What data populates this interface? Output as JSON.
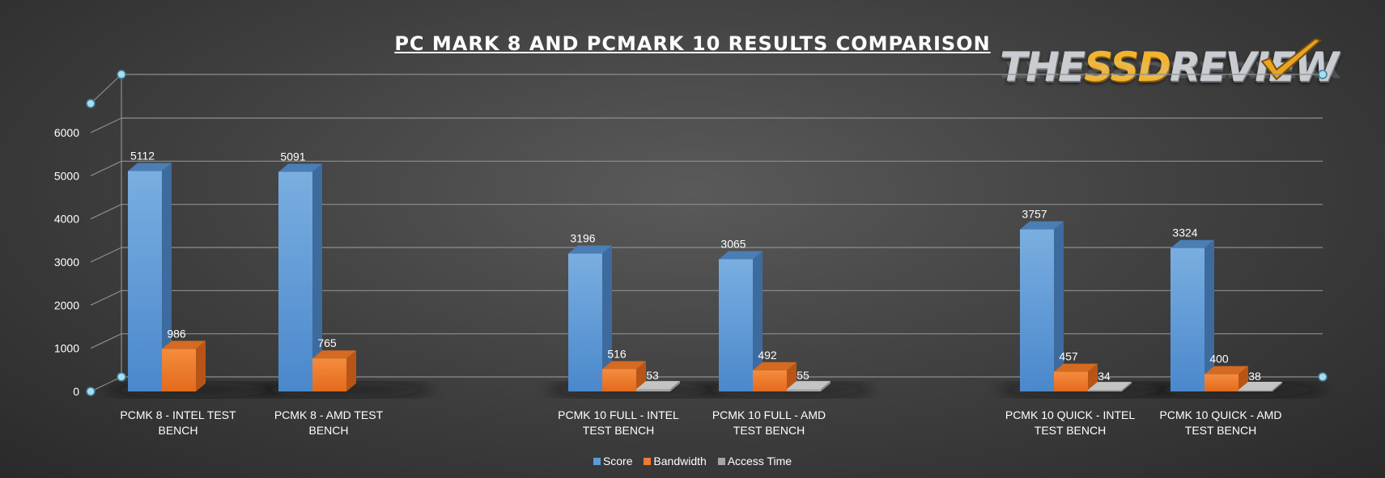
{
  "header": {
    "title": "PC MARK 8 AND PCMARK 10 RESULTS COMPARISON",
    "logo_word_1": "THE",
    "logo_word_2": "SSD",
    "logo_word_3": "REVIEW"
  },
  "legend": {
    "items": [
      {
        "label": "Score",
        "color": "#5b9bd5"
      },
      {
        "label": "Bandwidth",
        "color": "#ed7d31"
      },
      {
        "label": "Access Time",
        "color": "#a5a5a5"
      }
    ]
  },
  "chart_data": {
    "type": "bar",
    "title": "PC MARK 8 AND PCMARK 10 RESULTS COMPARISON",
    "categories": [
      [
        "PCMK 8 - INTEL TEST",
        "BENCH"
      ],
      [
        "PCMK 8 - AMD TEST",
        "BENCH"
      ],
      [
        "PCMK 10 FULL - INTEL",
        "TEST BENCH"
      ],
      [
        "PCMK 10 FULL - AMD",
        "TEST BENCH"
      ],
      [
        "PCMK 10 QUICK - INTEL",
        "TEST BENCH"
      ],
      [
        "PCMK 10 QUICK - AMD",
        "TEST BENCH"
      ]
    ],
    "series": [
      {
        "name": "Score",
        "values": [
          5112,
          5091,
          3196,
          3065,
          3757,
          3324
        ]
      },
      {
        "name": "Bandwidth",
        "values": [
          986,
          765,
          516,
          492,
          457,
          400
        ]
      },
      {
        "name": "Access Time",
        "values": [
          null,
          null,
          53,
          55,
          34,
          38
        ]
      }
    ],
    "yticks": [
      0,
      1000,
      2000,
      3000,
      4000,
      5000,
      6000
    ],
    "ylim": [
      0,
      6000
    ],
    "grid": true,
    "legend_position": "bottom",
    "colors": {
      "Score": "#5b9bd5",
      "Bandwidth": "#ed7d31",
      "Access Time": "#a5a5a5"
    }
  }
}
